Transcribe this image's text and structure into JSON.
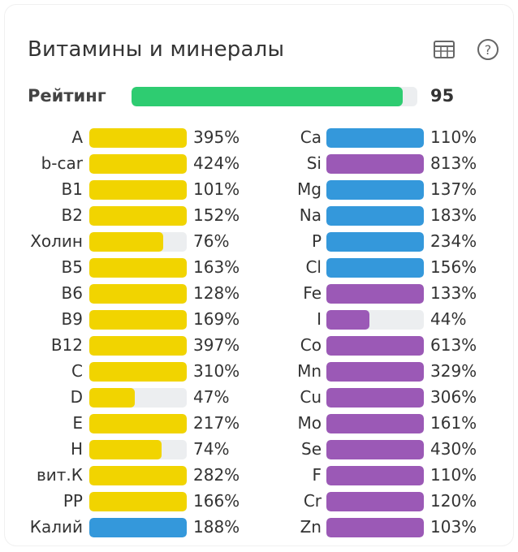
{
  "title": "Витамины и минералы",
  "icons": {
    "table": "table-icon",
    "help": "help-icon"
  },
  "rating": {
    "label": "Рейтинг",
    "value": "95",
    "fill": 0.95,
    "color": "#2ecc71"
  },
  "colors": {
    "vitamin": "#f1d400",
    "mineral_blue": "#3498db",
    "mineral_purple": "#9b59b6"
  },
  "vitamins": [
    {
      "name": "A",
      "pct": "395%",
      "fill": 1.0,
      "color": "#f1d400"
    },
    {
      "name": "b-car",
      "pct": "424%",
      "fill": 1.0,
      "color": "#f1d400"
    },
    {
      "name": "B1",
      "pct": "101%",
      "fill": 1.0,
      "color": "#f1d400"
    },
    {
      "name": "B2",
      "pct": "152%",
      "fill": 1.0,
      "color": "#f1d400"
    },
    {
      "name": "Холин",
      "pct": "76%",
      "fill": 0.76,
      "color": "#f1d400"
    },
    {
      "name": "B5",
      "pct": "163%",
      "fill": 1.0,
      "color": "#f1d400"
    },
    {
      "name": "B6",
      "pct": "128%",
      "fill": 1.0,
      "color": "#f1d400"
    },
    {
      "name": "B9",
      "pct": "169%",
      "fill": 1.0,
      "color": "#f1d400"
    },
    {
      "name": "B12",
      "pct": "397%",
      "fill": 1.0,
      "color": "#f1d400"
    },
    {
      "name": "C",
      "pct": "310%",
      "fill": 1.0,
      "color": "#f1d400"
    },
    {
      "name": "D",
      "pct": "47%",
      "fill": 0.47,
      "color": "#f1d400"
    },
    {
      "name": "E",
      "pct": "217%",
      "fill": 1.0,
      "color": "#f1d400"
    },
    {
      "name": "H",
      "pct": "74%",
      "fill": 0.74,
      "color": "#f1d400"
    },
    {
      "name": "вит.К",
      "pct": "282%",
      "fill": 1.0,
      "color": "#f1d400"
    },
    {
      "name": "PP",
      "pct": "166%",
      "fill": 1.0,
      "color": "#f1d400"
    },
    {
      "name": "Калий",
      "pct": "188%",
      "fill": 1.0,
      "color": "#3498db"
    }
  ],
  "minerals": [
    {
      "name": "Ca",
      "pct": "110%",
      "fill": 1.0,
      "color": "#3498db"
    },
    {
      "name": "Si",
      "pct": "813%",
      "fill": 1.0,
      "color": "#9b59b6"
    },
    {
      "name": "Mg",
      "pct": "137%",
      "fill": 1.0,
      "color": "#3498db"
    },
    {
      "name": "Na",
      "pct": "183%",
      "fill": 1.0,
      "color": "#3498db"
    },
    {
      "name": "P",
      "pct": "234%",
      "fill": 1.0,
      "color": "#3498db"
    },
    {
      "name": "Cl",
      "pct": "156%",
      "fill": 1.0,
      "color": "#3498db"
    },
    {
      "name": "Fe",
      "pct": "133%",
      "fill": 1.0,
      "color": "#9b59b6"
    },
    {
      "name": "I",
      "pct": "44%",
      "fill": 0.44,
      "color": "#9b59b6"
    },
    {
      "name": "Co",
      "pct": "613%",
      "fill": 1.0,
      "color": "#9b59b6"
    },
    {
      "name": "Mn",
      "pct": "329%",
      "fill": 1.0,
      "color": "#9b59b6"
    },
    {
      "name": "Cu",
      "pct": "306%",
      "fill": 1.0,
      "color": "#9b59b6"
    },
    {
      "name": "Mo",
      "pct": "161%",
      "fill": 1.0,
      "color": "#9b59b6"
    },
    {
      "name": "Se",
      "pct": "430%",
      "fill": 1.0,
      "color": "#9b59b6"
    },
    {
      "name": "F",
      "pct": "110%",
      "fill": 1.0,
      "color": "#9b59b6"
    },
    {
      "name": "Cr",
      "pct": "120%",
      "fill": 1.0,
      "color": "#9b59b6"
    },
    {
      "name": "Zn",
      "pct": "103%",
      "fill": 1.0,
      "color": "#9b59b6"
    }
  ]
}
